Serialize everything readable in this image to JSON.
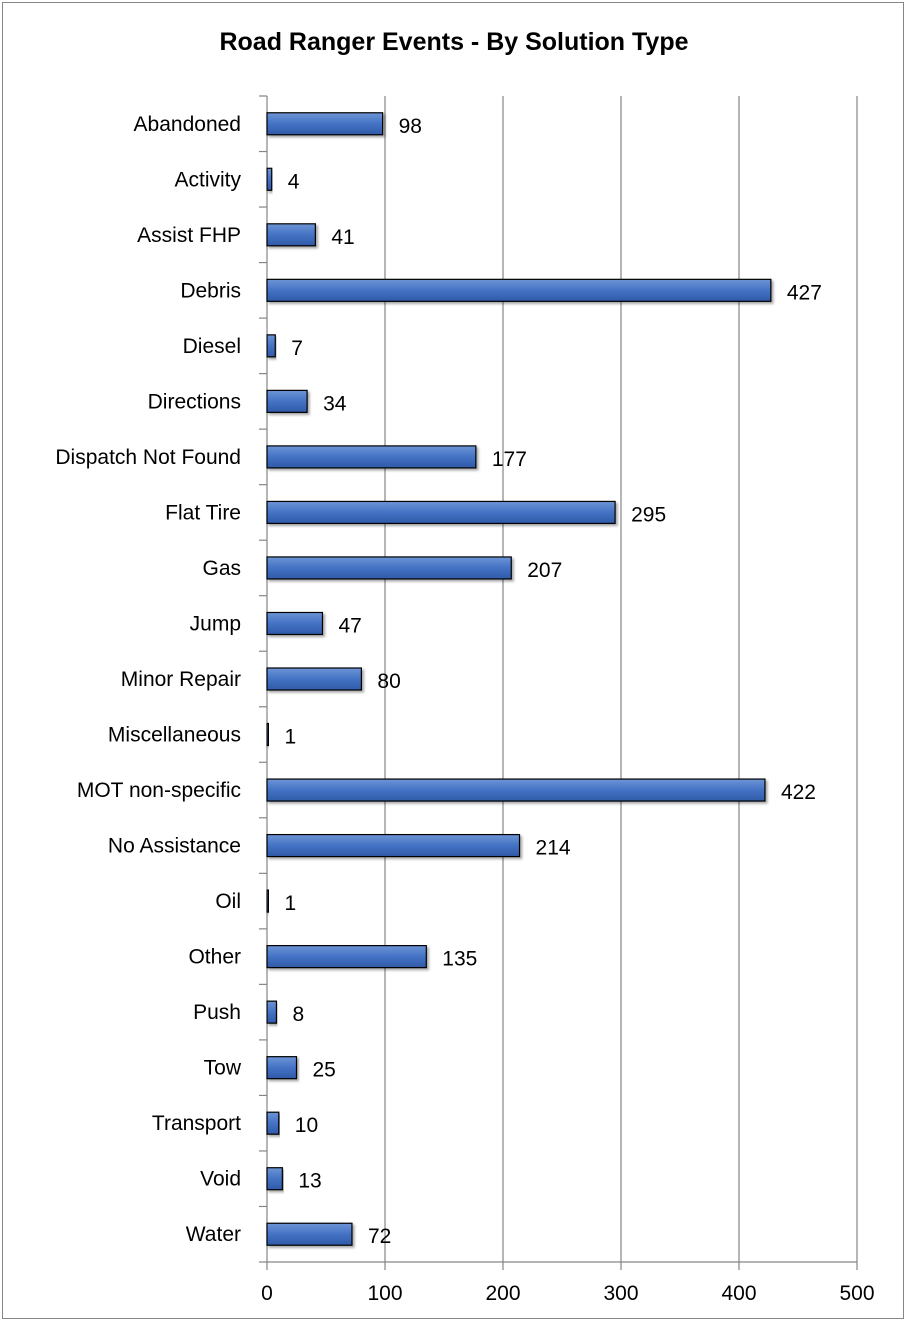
{
  "chart_data": {
    "type": "bar",
    "orientation": "horizontal",
    "title": "Road Ranger Events - By Solution Type",
    "categories": [
      "Abandoned",
      "Activity",
      "Assist FHP",
      "Debris",
      "Diesel",
      "Directions",
      "Dispatch Not Found",
      "Flat Tire",
      "Gas",
      "Jump",
      "Minor Repair",
      "Miscellaneous",
      "MOT non-specific",
      "No Assistance",
      "Oil",
      "Other",
      "Push",
      "Tow",
      "Transport",
      "Void",
      "Water"
    ],
    "values": [
      98,
      4,
      41,
      427,
      7,
      34,
      177,
      295,
      207,
      47,
      80,
      1,
      422,
      214,
      1,
      135,
      8,
      25,
      10,
      13,
      72
    ],
    "xlim": [
      0,
      500
    ],
    "xticks": [
      0,
      100,
      200,
      300,
      400,
      500
    ],
    "xlabel": "",
    "ylabel": "",
    "grid": "vertical",
    "legend": "none",
    "colors": {
      "bar": "#4472C4",
      "bar_edge": "#000000",
      "grid": "#868686",
      "axis": "#868686"
    }
  }
}
